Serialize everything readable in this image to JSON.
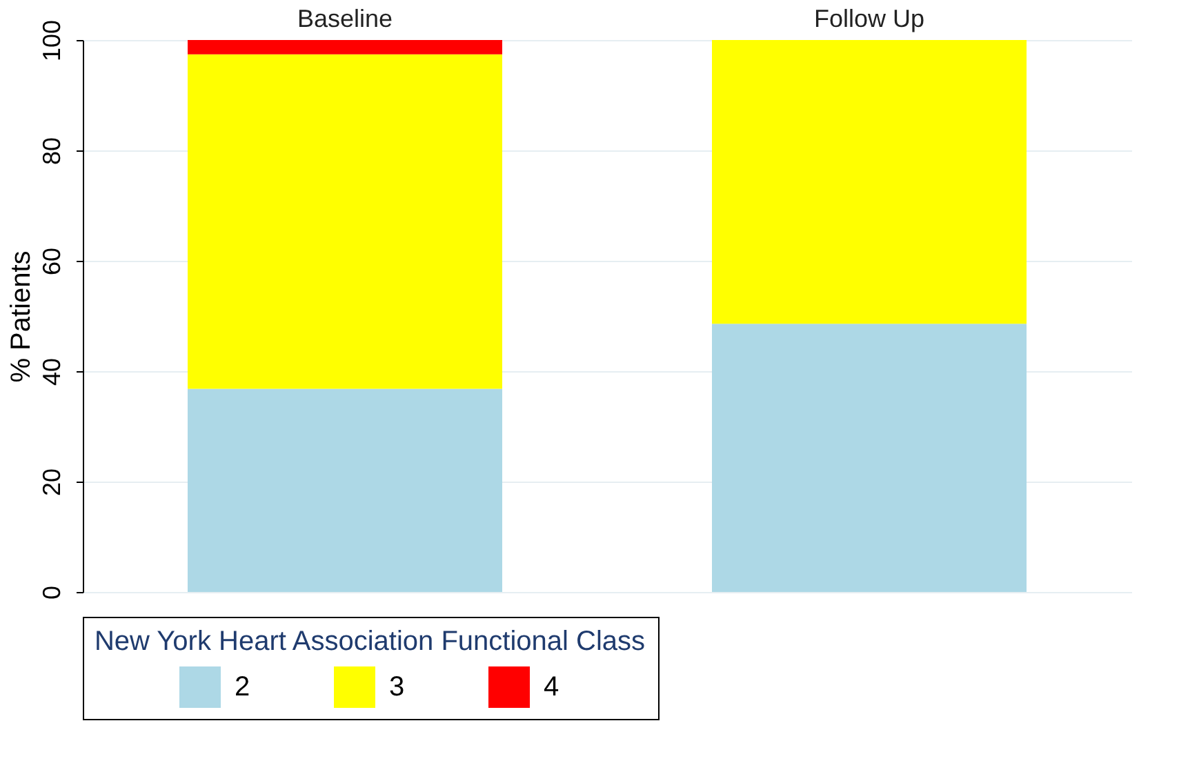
{
  "chart_data": {
    "type": "bar",
    "stacked": true,
    "ylabel": "% Patients",
    "categories": [
      "Baseline",
      "Follow Up"
    ],
    "ylim": [
      0,
      100
    ],
    "yticks": [
      0,
      20,
      40,
      60,
      80,
      100
    ],
    "grid": "y",
    "legend": "bottom",
    "legend_title": "New York Heart Association Functional Class",
    "series": [
      {
        "name": "2",
        "color": "#add8e6",
        "values": [
          36.8,
          48.6
        ]
      },
      {
        "name": "3",
        "color": "#ffff00",
        "values": [
          60.6,
          51.4
        ]
      },
      {
        "name": "4",
        "color": "#ff0000",
        "values": [
          2.6,
          null
        ]
      }
    ]
  }
}
